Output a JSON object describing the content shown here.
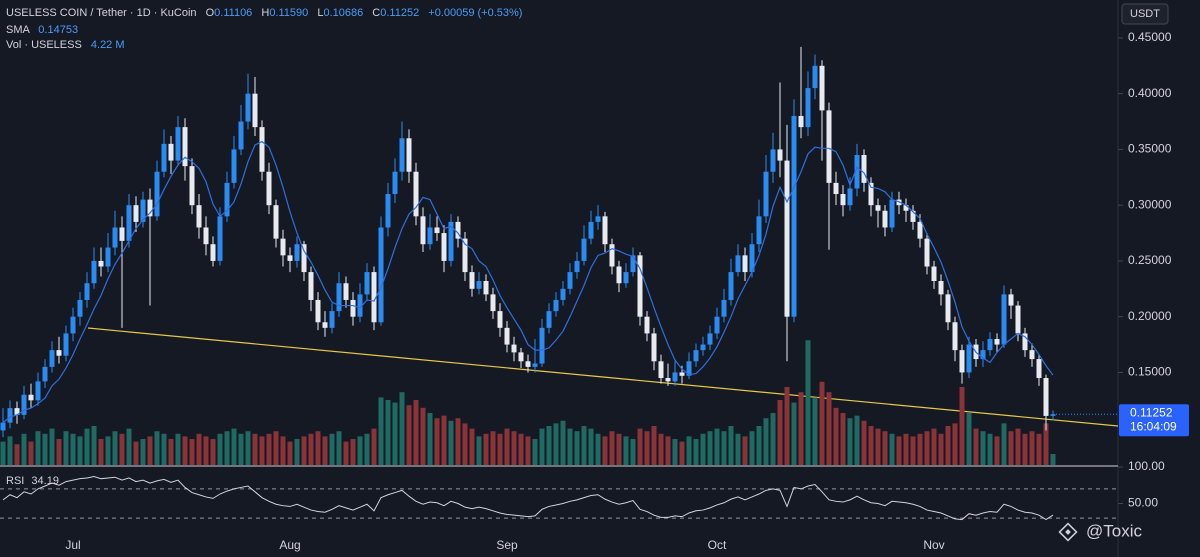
{
  "chart_data": {
    "type": "candlestick",
    "title": "USELESS COIN / Tether · 1D · KuCoin",
    "ohlc_letters": [
      "O",
      "H",
      "L",
      "C"
    ],
    "high_label": "0.11590",
    "change_label": "+0.00059 (+0.53%)",
    "quote": "USDT",
    "countdown": "16:04:09",
    "up_color": "#2a8bf2",
    "down_color": "#e8eaf0",
    "ylim": [
      0.067,
      0.484
    ],
    "yticks": [
      {
        "value": 0.45,
        "label": "0.45000"
      },
      {
        "value": 0.4,
        "label": "0.40000"
      },
      {
        "value": 0.35,
        "label": "0.35000"
      },
      {
        "value": 0.3,
        "label": "0.30000"
      },
      {
        "value": 0.25,
        "label": "0.25000"
      },
      {
        "value": 0.2,
        "label": "0.20000"
      },
      {
        "value": 0.15,
        "label": "0.15000"
      }
    ],
    "xticks": [
      {
        "value": 10,
        "label": "Jul"
      },
      {
        "value": 41,
        "label": "Aug"
      },
      {
        "value": 72,
        "label": "Sep"
      },
      {
        "value": 102,
        "label": "Oct"
      },
      {
        "value": 133,
        "label": "Nov"
      }
    ],
    "candles": [
      [
        0.098,
        0.118,
        0.092,
        0.105,
        9
      ],
      [
        0.105,
        0.125,
        0.1,
        0.118,
        11
      ],
      [
        0.118,
        0.124,
        0.104,
        0.112,
        8
      ],
      [
        0.112,
        0.138,
        0.108,
        0.13,
        12
      ],
      [
        0.13,
        0.14,
        0.118,
        0.125,
        9
      ],
      [
        0.125,
        0.15,
        0.12,
        0.142,
        13
      ],
      [
        0.142,
        0.162,
        0.136,
        0.155,
        12
      ],
      [
        0.155,
        0.178,
        0.15,
        0.17,
        14
      ],
      [
        0.17,
        0.182,
        0.158,
        0.165,
        10
      ],
      [
        0.165,
        0.192,
        0.16,
        0.185,
        13
      ],
      [
        0.185,
        0.208,
        0.178,
        0.2,
        12
      ],
      [
        0.2,
        0.222,
        0.192,
        0.215,
        11
      ],
      [
        0.215,
        0.24,
        0.208,
        0.23,
        14
      ],
      [
        0.23,
        0.262,
        0.225,
        0.25,
        15
      ],
      [
        0.25,
        0.262,
        0.236,
        0.245,
        10
      ],
      [
        0.245,
        0.275,
        0.24,
        0.262,
        11
      ],
      [
        0.262,
        0.295,
        0.255,
        0.28,
        13
      ],
      [
        0.28,
        0.29,
        0.19,
        0.268,
        12
      ],
      [
        0.268,
        0.31,
        0.262,
        0.3,
        14
      ],
      [
        0.3,
        0.308,
        0.276,
        0.285,
        9
      ],
      [
        0.285,
        0.312,
        0.28,
        0.305,
        10
      ],
      [
        0.305,
        0.315,
        0.21,
        0.29,
        11
      ],
      [
        0.29,
        0.34,
        0.286,
        0.33,
        13
      ],
      [
        0.33,
        0.368,
        0.325,
        0.355,
        12
      ],
      [
        0.355,
        0.362,
        0.328,
        0.34,
        10
      ],
      [
        0.34,
        0.38,
        0.335,
        0.37,
        12
      ],
      [
        0.37,
        0.378,
        0.322,
        0.335,
        11
      ],
      [
        0.335,
        0.342,
        0.292,
        0.3,
        10
      ],
      [
        0.3,
        0.31,
        0.27,
        0.28,
        12
      ],
      [
        0.28,
        0.29,
        0.255,
        0.265,
        11
      ],
      [
        0.265,
        0.272,
        0.245,
        0.25,
        10
      ],
      [
        0.25,
        0.298,
        0.246,
        0.29,
        12
      ],
      [
        0.29,
        0.33,
        0.285,
        0.32,
        13
      ],
      [
        0.32,
        0.362,
        0.315,
        0.35,
        14
      ],
      [
        0.35,
        0.39,
        0.345,
        0.375,
        12
      ],
      [
        0.375,
        0.418,
        0.368,
        0.4,
        13
      ],
      [
        0.4,
        0.415,
        0.362,
        0.37,
        12
      ],
      [
        0.37,
        0.376,
        0.322,
        0.33,
        11
      ],
      [
        0.33,
        0.338,
        0.292,
        0.3,
        12
      ],
      [
        0.3,
        0.305,
        0.262,
        0.27,
        13
      ],
      [
        0.27,
        0.278,
        0.245,
        0.255,
        11
      ],
      [
        0.255,
        0.262,
        0.24,
        0.25,
        9
      ],
      [
        0.25,
        0.272,
        0.244,
        0.265,
        10
      ],
      [
        0.265,
        0.268,
        0.232,
        0.24,
        11
      ],
      [
        0.24,
        0.245,
        0.205,
        0.215,
        12
      ],
      [
        0.215,
        0.222,
        0.188,
        0.195,
        13
      ],
      [
        0.195,
        0.205,
        0.182,
        0.19,
        11
      ],
      [
        0.19,
        0.212,
        0.185,
        0.205,
        12
      ],
      [
        0.205,
        0.24,
        0.2,
        0.23,
        13
      ],
      [
        0.23,
        0.236,
        0.208,
        0.215,
        9
      ],
      [
        0.215,
        0.222,
        0.192,
        0.2,
        10
      ],
      [
        0.2,
        0.23,
        0.195,
        0.22,
        11
      ],
      [
        0.22,
        0.248,
        0.214,
        0.24,
        12
      ],
      [
        0.24,
        0.245,
        0.188,
        0.195,
        14
      ],
      [
        0.195,
        0.29,
        0.192,
        0.28,
        26
      ],
      [
        0.28,
        0.32,
        0.272,
        0.31,
        25
      ],
      [
        0.31,
        0.342,
        0.302,
        0.33,
        24
      ],
      [
        0.33,
        0.375,
        0.322,
        0.36,
        28
      ],
      [
        0.36,
        0.368,
        0.32,
        0.33,
        23
      ],
      [
        0.33,
        0.338,
        0.282,
        0.29,
        25
      ],
      [
        0.29,
        0.298,
        0.258,
        0.265,
        22
      ],
      [
        0.265,
        0.292,
        0.26,
        0.28,
        20
      ],
      [
        0.28,
        0.29,
        0.268,
        0.275,
        18
      ],
      [
        0.275,
        0.282,
        0.24,
        0.25,
        19
      ],
      [
        0.25,
        0.292,
        0.245,
        0.285,
        17
      ],
      [
        0.285,
        0.29,
        0.262,
        0.27,
        18
      ],
      [
        0.27,
        0.276,
        0.232,
        0.24,
        16
      ],
      [
        0.24,
        0.246,
        0.218,
        0.225,
        14
      ],
      [
        0.225,
        0.24,
        0.22,
        0.232,
        11
      ],
      [
        0.232,
        0.238,
        0.214,
        0.22,
        12
      ],
      [
        0.22,
        0.226,
        0.198,
        0.205,
        13
      ],
      [
        0.205,
        0.212,
        0.182,
        0.19,
        12
      ],
      [
        0.19,
        0.196,
        0.168,
        0.175,
        14
      ],
      [
        0.175,
        0.182,
        0.16,
        0.168,
        13
      ],
      [
        0.168,
        0.172,
        0.154,
        0.16,
        12
      ],
      [
        0.16,
        0.166,
        0.15,
        0.155,
        11
      ],
      [
        0.155,
        0.18,
        0.15,
        0.158,
        10
      ],
      [
        0.158,
        0.198,
        0.155,
        0.19,
        14
      ],
      [
        0.19,
        0.212,
        0.185,
        0.205,
        15
      ],
      [
        0.205,
        0.222,
        0.2,
        0.215,
        16
      ],
      [
        0.215,
        0.232,
        0.21,
        0.225,
        17
      ],
      [
        0.225,
        0.248,
        0.22,
        0.24,
        14
      ],
      [
        0.24,
        0.258,
        0.234,
        0.25,
        13
      ],
      [
        0.25,
        0.282,
        0.246,
        0.27,
        15
      ],
      [
        0.27,
        0.295,
        0.265,
        0.285,
        14
      ],
      [
        0.285,
        0.3,
        0.278,
        0.29,
        12
      ],
      [
        0.29,
        0.294,
        0.258,
        0.265,
        11
      ],
      [
        0.265,
        0.27,
        0.238,
        0.245,
        13
      ],
      [
        0.245,
        0.25,
        0.222,
        0.23,
        12
      ],
      [
        0.23,
        0.248,
        0.226,
        0.24,
        11
      ],
      [
        0.24,
        0.262,
        0.236,
        0.255,
        10
      ],
      [
        0.255,
        0.258,
        0.192,
        0.2,
        14
      ],
      [
        0.2,
        0.205,
        0.178,
        0.185,
        13
      ],
      [
        0.185,
        0.19,
        0.152,
        0.16,
        15
      ],
      [
        0.16,
        0.166,
        0.14,
        0.145,
        12
      ],
      [
        0.145,
        0.158,
        0.138,
        0.142,
        11
      ],
      [
        0.142,
        0.16,
        0.138,
        0.15,
        10
      ],
      [
        0.15,
        0.156,
        0.14,
        0.147,
        9
      ],
      [
        0.147,
        0.168,
        0.144,
        0.16,
        11
      ],
      [
        0.16,
        0.176,
        0.155,
        0.17,
        10
      ],
      [
        0.17,
        0.182,
        0.165,
        0.175,
        12
      ],
      [
        0.175,
        0.192,
        0.17,
        0.185,
        13
      ],
      [
        0.185,
        0.208,
        0.18,
        0.2,
        14
      ],
      [
        0.2,
        0.225,
        0.195,
        0.215,
        13
      ],
      [
        0.215,
        0.252,
        0.21,
        0.24,
        15
      ],
      [
        0.24,
        0.265,
        0.236,
        0.255,
        12
      ],
      [
        0.255,
        0.262,
        0.232,
        0.24,
        11
      ],
      [
        0.24,
        0.275,
        0.235,
        0.265,
        13
      ],
      [
        0.265,
        0.305,
        0.258,
        0.29,
        15
      ],
      [
        0.29,
        0.345,
        0.284,
        0.33,
        18
      ],
      [
        0.33,
        0.365,
        0.32,
        0.35,
        20
      ],
      [
        0.35,
        0.41,
        0.325,
        0.34,
        25
      ],
      [
        0.34,
        0.372,
        0.16,
        0.2,
        30
      ],
      [
        0.2,
        0.395,
        0.195,
        0.38,
        24
      ],
      [
        0.38,
        0.442,
        0.36,
        0.37,
        28
      ],
      [
        0.37,
        0.42,
        0.362,
        0.405,
        48
      ],
      [
        0.405,
        0.435,
        0.395,
        0.425,
        26
      ],
      [
        0.425,
        0.43,
        0.34,
        0.385,
        32
      ],
      [
        0.385,
        0.392,
        0.26,
        0.32,
        28
      ],
      [
        0.32,
        0.33,
        0.3,
        0.31,
        22
      ],
      [
        0.31,
        0.318,
        0.29,
        0.3,
        20
      ],
      [
        0.3,
        0.325,
        0.295,
        0.315,
        18
      ],
      [
        0.315,
        0.355,
        0.308,
        0.345,
        19
      ],
      [
        0.345,
        0.35,
        0.312,
        0.32,
        17
      ],
      [
        0.32,
        0.325,
        0.29,
        0.3,
        15
      ],
      [
        0.3,
        0.306,
        0.28,
        0.295,
        14
      ],
      [
        0.295,
        0.3,
        0.272,
        0.28,
        13
      ],
      [
        0.28,
        0.312,
        0.276,
        0.305,
        12
      ],
      [
        0.305,
        0.312,
        0.292,
        0.3,
        11
      ],
      [
        0.3,
        0.306,
        0.285,
        0.295,
        12
      ],
      [
        0.295,
        0.3,
        0.278,
        0.285,
        11
      ],
      [
        0.285,
        0.292,
        0.262,
        0.27,
        12
      ],
      [
        0.27,
        0.275,
        0.238,
        0.245,
        13
      ],
      [
        0.245,
        0.25,
        0.225,
        0.232,
        14
      ],
      [
        0.232,
        0.238,
        0.21,
        0.22,
        12
      ],
      [
        0.22,
        0.224,
        0.188,
        0.195,
        15
      ],
      [
        0.195,
        0.2,
        0.16,
        0.17,
        16
      ],
      [
        0.17,
        0.175,
        0.14,
        0.15,
        30
      ],
      [
        0.15,
        0.182,
        0.145,
        0.175,
        20
      ],
      [
        0.175,
        0.18,
        0.155,
        0.162,
        14
      ],
      [
        0.162,
        0.178,
        0.155,
        0.17,
        13
      ],
      [
        0.17,
        0.186,
        0.165,
        0.18,
        12
      ],
      [
        0.18,
        0.185,
        0.168,
        0.175,
        11
      ],
      [
        0.175,
        0.228,
        0.172,
        0.22,
        16
      ],
      [
        0.22,
        0.225,
        0.198,
        0.21,
        13
      ],
      [
        0.21,
        0.214,
        0.178,
        0.185,
        14
      ],
      [
        0.185,
        0.19,
        0.164,
        0.17,
        12
      ],
      [
        0.17,
        0.176,
        0.155,
        0.162,
        13
      ],
      [
        0.162,
        0.166,
        0.138,
        0.145,
        12
      ],
      [
        0.145,
        0.148,
        0.098,
        0.111,
        16
      ],
      [
        0.11106,
        0.1159,
        0.10686,
        0.11252,
        4.22
      ]
    ],
    "volume": {
      "name": "Vol · USELESS",
      "value_label": "4.22 M",
      "ylim": [
        0,
        50
      ],
      "up_color": "#1f6b63",
      "down_color": "#8a3338"
    },
    "sma": {
      "name": "SMA",
      "color": "#2f6fe0",
      "values": [
        0.105,
        0.11,
        0.112,
        0.116,
        0.118,
        0.122,
        0.127,
        0.138,
        0.144,
        0.154,
        0.166,
        0.18,
        0.193,
        0.207,
        0.219,
        0.234,
        0.247,
        0.257,
        0.268,
        0.279,
        0.287,
        0.293,
        0.301,
        0.314,
        0.326,
        0.336,
        0.343,
        0.339,
        0.333,
        0.321,
        0.301,
        0.29,
        0.295,
        0.303,
        0.319,
        0.339,
        0.354,
        0.357,
        0.352,
        0.336,
        0.316,
        0.294,
        0.275,
        0.259,
        0.249,
        0.237,
        0.224,
        0.213,
        0.21,
        0.21,
        0.21,
        0.208,
        0.215,
        0.214,
        0.226,
        0.243,
        0.262,
        0.279,
        0.292,
        0.298,
        0.307,
        0.305,
        0.292,
        0.279,
        0.281,
        0.275,
        0.265,
        0.261,
        0.25,
        0.245,
        0.233,
        0.219,
        0.208,
        0.198,
        0.188,
        0.175,
        0.17,
        0.17,
        0.172,
        0.179,
        0.187,
        0.2,
        0.214,
        0.228,
        0.244,
        0.255,
        0.257,
        0.261,
        0.259,
        0.256,
        0.254,
        0.243,
        0.226,
        0.208,
        0.191,
        0.175,
        0.161,
        0.153,
        0.148,
        0.149,
        0.155,
        0.163,
        0.173,
        0.186,
        0.2,
        0.216,
        0.228,
        0.24,
        0.255,
        0.274,
        0.299,
        0.316,
        0.303,
        0.316,
        0.33,
        0.346,
        0.352,
        0.351,
        0.351,
        0.348,
        0.336,
        0.318,
        0.334,
        0.329,
        0.316,
        0.315,
        0.312,
        0.305,
        0.303,
        0.3,
        0.294,
        0.288,
        0.274,
        0.262,
        0.249,
        0.232,
        0.213,
        0.191,
        0.178,
        0.168,
        0.163,
        0.159,
        0.168,
        0.175,
        0.18,
        0.185,
        0.182,
        0.175,
        0.166,
        0.156,
        0.14753
      ]
    },
    "rsi": {
      "name": "RSI",
      "color": "#d1d4dc",
      "ylim": [
        0,
        100
      ],
      "yticks": [
        {
          "value": 100,
          "label": "100.00"
        },
        {
          "value": 50,
          "label": "50.00"
        }
      ],
      "bands": [
        70,
        30
      ],
      "values": [
        55,
        62,
        58,
        66,
        63,
        70,
        74,
        78,
        75,
        80,
        82,
        84,
        85,
        87,
        84,
        85,
        86,
        82,
        85,
        80,
        82,
        78,
        81,
        83,
        79,
        82,
        72,
        65,
        62,
        59,
        57,
        63,
        67,
        70,
        72,
        74,
        66,
        58,
        53,
        49,
        47,
        46,
        49,
        45,
        41,
        39,
        38,
        42,
        47,
        44,
        41,
        45,
        49,
        40,
        58,
        62,
        65,
        68,
        60,
        53,
        49,
        52,
        51,
        47,
        53,
        50,
        45,
        43,
        45,
        43,
        40,
        37,
        35,
        34,
        33,
        32,
        33,
        42,
        46,
        48,
        50,
        53,
        55,
        58,
        61,
        62,
        56,
        52,
        49,
        51,
        54,
        42,
        39,
        34,
        31,
        31,
        33,
        32,
        37,
        40,
        41,
        44,
        48,
        51,
        56,
        59,
        55,
        59,
        63,
        68,
        70,
        68,
        46,
        72,
        70,
        74,
        76,
        66,
        55,
        53,
        52,
        55,
        60,
        55,
        51,
        50,
        47,
        53,
        52,
        51,
        49,
        46,
        41,
        39,
        37,
        33,
        29,
        28,
        36,
        34,
        37,
        39,
        38,
        49,
        46,
        41,
        38,
        37,
        34,
        28,
        34.19
      ]
    }
  },
  "watermark": "@Toxic"
}
